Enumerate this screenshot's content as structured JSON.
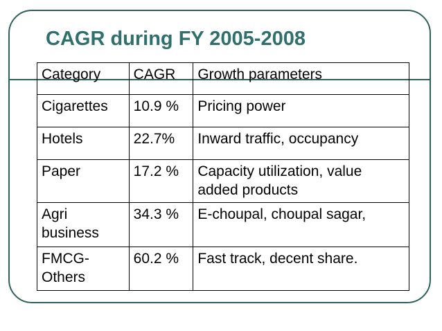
{
  "slide": {
    "title": "CAGR during FY 2005-2008"
  },
  "table": {
    "headers": [
      "Category",
      "CAGR",
      "Growth parameters"
    ],
    "rows": [
      {
        "category": "Cigarettes",
        "cagr": "10.9 %",
        "growth": "Pricing power"
      },
      {
        "category": "Hotels",
        "cagr": "22.7%",
        "growth": "Inward traffic, occupancy"
      },
      {
        "category": "Paper",
        "cagr": "17.2 %",
        "growth": "Capacity utilization, value added products"
      },
      {
        "category": "Agri business",
        "cagr": "34.3 %",
        "growth": "E-choupal, choupal sagar,"
      },
      {
        "category": "FMCG-Others",
        "cagr": "60.2 %",
        "growth": "Fast track, decent share."
      }
    ]
  },
  "colors": {
    "frame": "#2f5f5c",
    "title": "#2f6f6c",
    "text": "#000000"
  }
}
